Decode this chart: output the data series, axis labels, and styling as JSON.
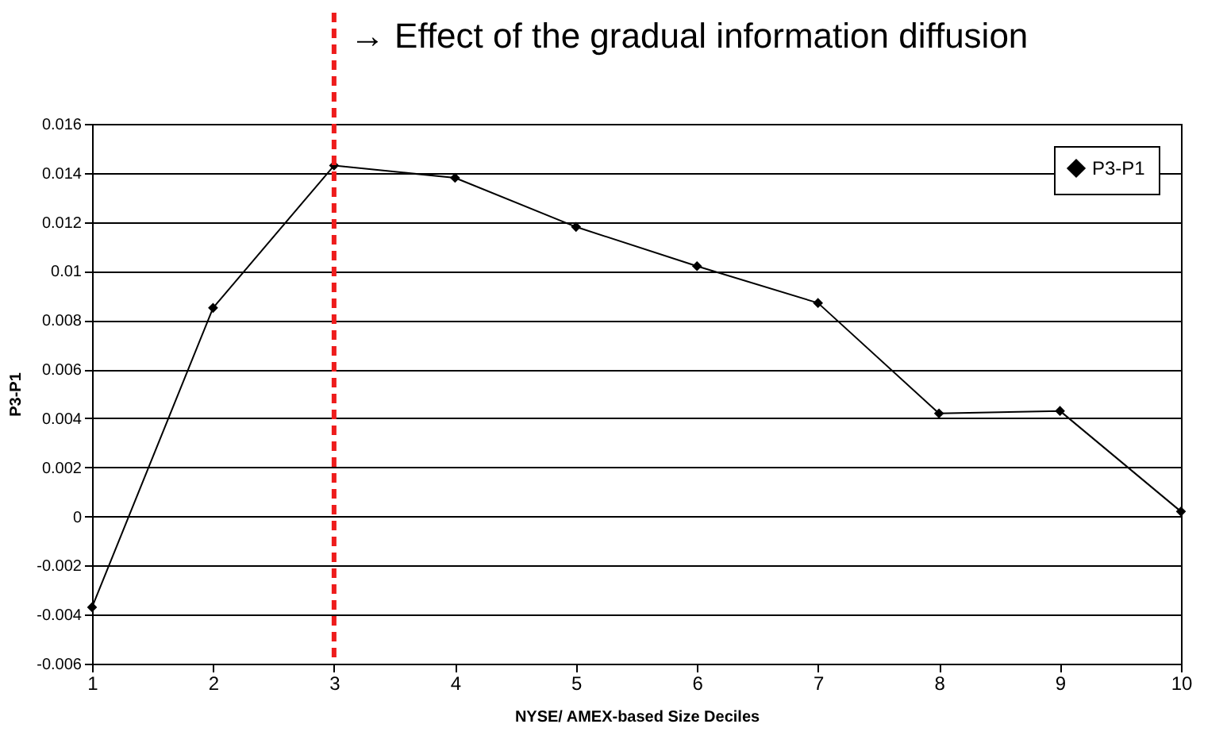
{
  "chart_data": {
    "type": "line",
    "xlabel": "NYSE/ AMEX-based Size Deciles",
    "ylabel": "P3-P1",
    "x": [
      1,
      2,
      3,
      4,
      5,
      6,
      7,
      8,
      9,
      10
    ],
    "series": [
      {
        "name": "P3-P1",
        "color": "#000000",
        "values": [
          -0.0037,
          0.0085,
          0.0143,
          0.0138,
          0.0118,
          0.0102,
          0.0087,
          0.0042,
          0.0043,
          0.0002
        ]
      }
    ],
    "xlim": [
      1,
      10
    ],
    "xticks": [
      1,
      2,
      3,
      4,
      5,
      6,
      7,
      8,
      9,
      10
    ],
    "ylim": [
      -0.006,
      0.016
    ],
    "yticks": [
      {
        "value": -0.006,
        "label": "-0.006"
      },
      {
        "value": -0.004,
        "label": "-0.004"
      },
      {
        "value": -0.002,
        "label": "-0.002"
      },
      0,
      {
        "value": 0.002,
        "label": "0.002"
      },
      {
        "value": 0.004,
        "label": "0.004"
      },
      {
        "value": 0.006,
        "label": "0.006"
      },
      {
        "value": 0.008,
        "label": "0.008"
      },
      {
        "value": 0.01,
        "label": "0.01"
      },
      {
        "value": 0.012,
        "label": "0.012"
      },
      {
        "value": 0.014,
        "label": "0.014"
      },
      {
        "value": 0.016,
        "label": "0.016"
      }
    ],
    "ref_lines": [
      {
        "axis": "x",
        "value": 3,
        "label": "→ Effect of the gradual information diffusion",
        "color": "#ee1c1c",
        "line_style": "dashed"
      }
    ],
    "grid": "y",
    "legend": "top right",
    "marker": "diamond",
    "line_style": "solid"
  }
}
